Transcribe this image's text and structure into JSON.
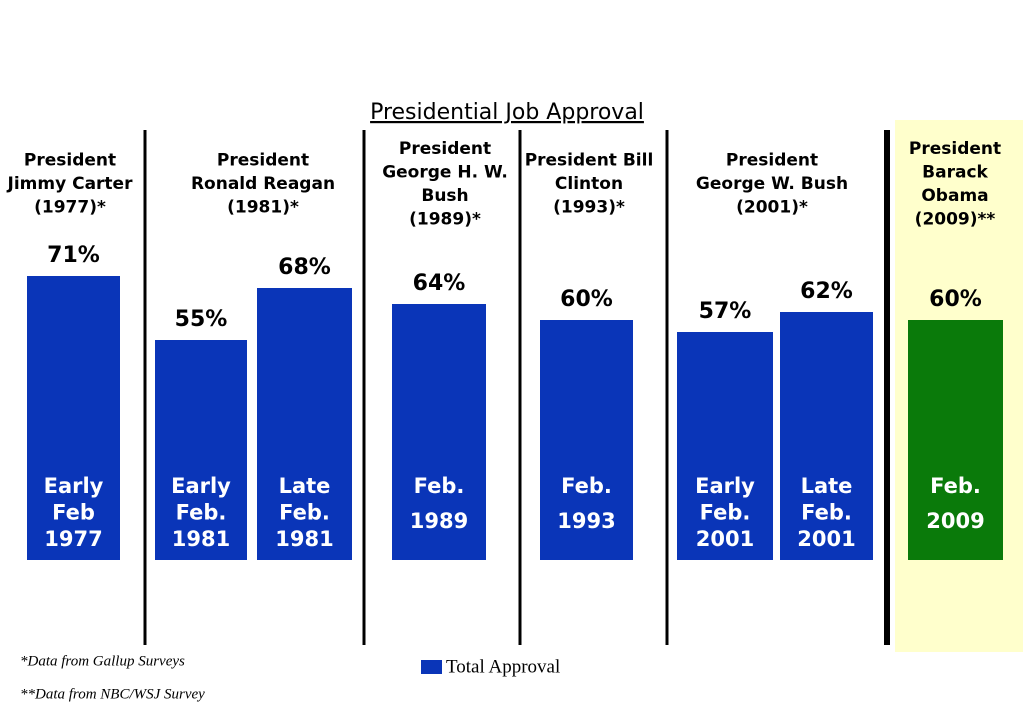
{
  "chart_data": {
    "type": "bar",
    "title": "Presidential Job Approval",
    "legend": {
      "name": "Total Approval",
      "color": "#0a35b8"
    },
    "footnotes": [
      "*Data from Gallup Surveys",
      "**Data from NBC/WSJ Survey"
    ],
    "groups": [
      {
        "label": [
          "President",
          "Jimmy Carter",
          "(1977)*"
        ],
        "color": "#0a35b8",
        "categories": [
          [
            "Early",
            "Feb",
            "1977"
          ]
        ],
        "values": [
          71
        ],
        "value_labels": [
          "71%"
        ]
      },
      {
        "label": [
          "President",
          "Ronald Reagan",
          "(1981)*"
        ],
        "color": "#0a35b8",
        "categories": [
          [
            "Early",
            "Feb.",
            "1981"
          ],
          [
            "Late",
            "Feb.",
            "1981"
          ]
        ],
        "values": [
          55,
          68
        ],
        "value_labels": [
          "55%",
          "68%"
        ]
      },
      {
        "label": [
          "President",
          "George H. W.",
          "Bush",
          "(1989)*"
        ],
        "color": "#0a35b8",
        "categories": [
          [
            "Feb.",
            "1989"
          ]
        ],
        "values": [
          64
        ],
        "value_labels": [
          "64%"
        ]
      },
      {
        "label": [
          "President Bill",
          "Clinton",
          "(1993)*"
        ],
        "color": "#0a35b8",
        "categories": [
          [
            "Feb.",
            "1993"
          ]
        ],
        "values": [
          60
        ],
        "value_labels": [
          "60%"
        ]
      },
      {
        "label": [
          "President",
          "George W. Bush",
          "(2001)*"
        ],
        "color": "#0a35b8",
        "categories": [
          [
            "Early",
            "Feb.",
            "2001"
          ],
          [
            "Late",
            "Feb.",
            "2001"
          ]
        ],
        "values": [
          57,
          62
        ],
        "value_labels": [
          "57%",
          "62%"
        ]
      },
      {
        "label": [
          "President",
          "Barack",
          "Obama",
          "(2009)**"
        ],
        "color": "#0a7a0a",
        "highlight": "#ffffcc",
        "categories": [
          [
            "Feb.",
            "2009"
          ]
        ],
        "values": [
          60
        ],
        "value_labels": [
          "60%"
        ]
      }
    ]
  }
}
